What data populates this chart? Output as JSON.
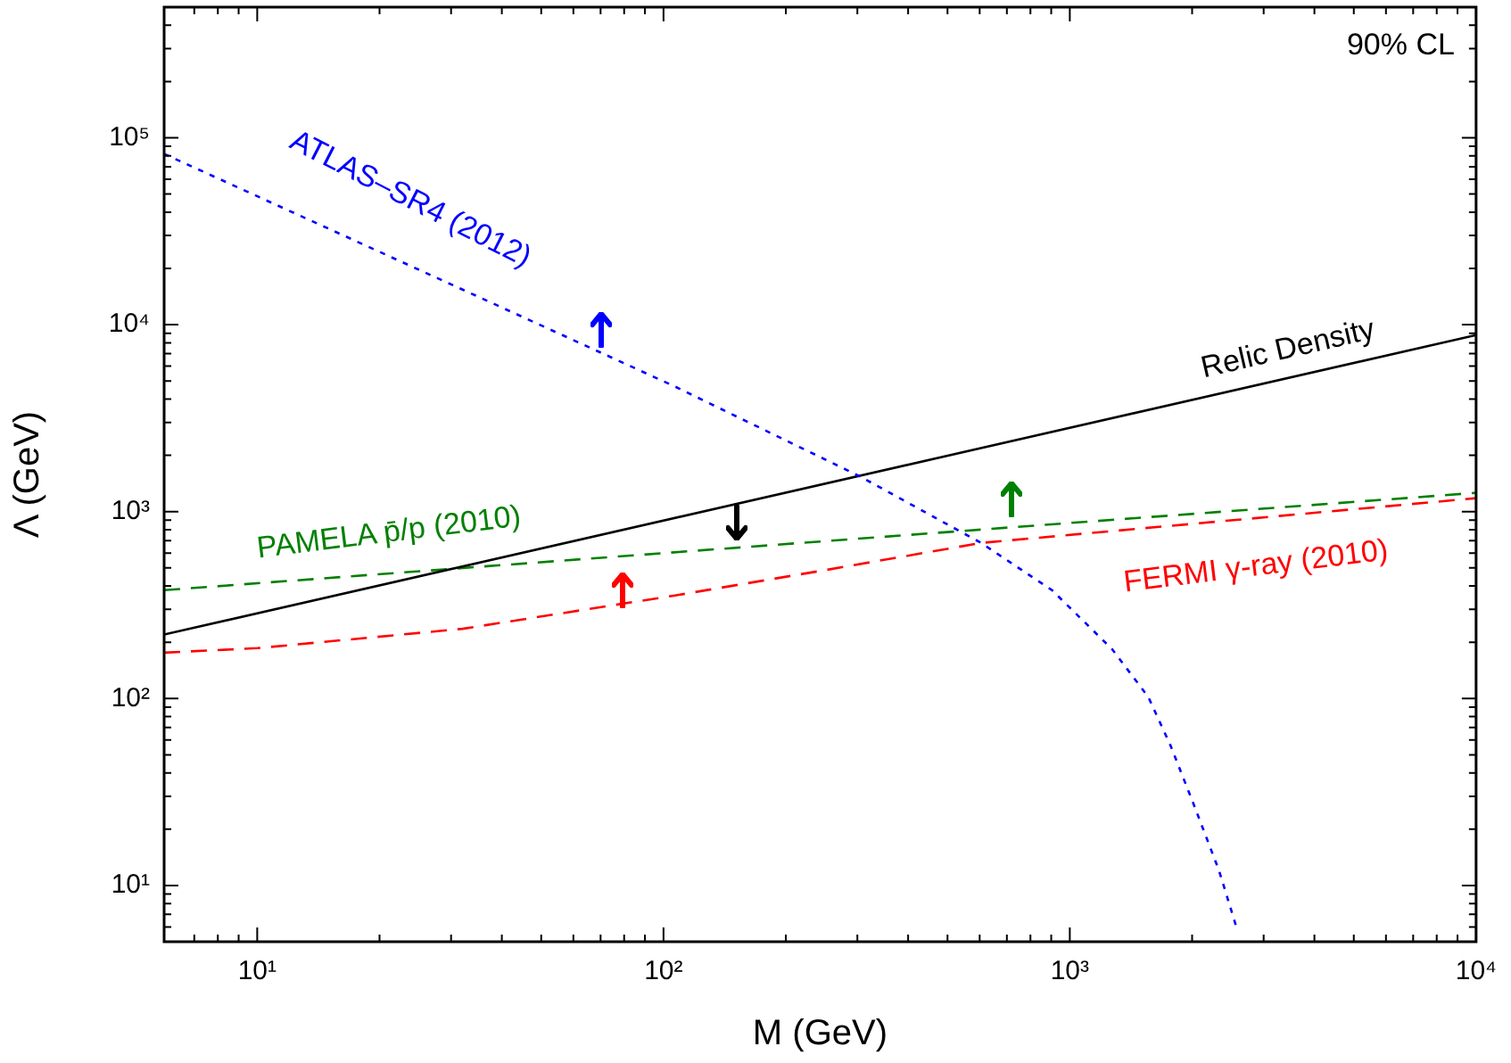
{
  "chart_data": {
    "type": "line",
    "xlabel": "M (GeV)",
    "ylabel": "Λ (GeV)",
    "log": "xy",
    "xlim": [
      5.9,
      10000
    ],
    "ylim": [
      5,
      500000
    ],
    "grid": false,
    "legend": false,
    "marker": "none",
    "xticks": [
      {
        "value": 7,
        "label": null
      },
      {
        "value": 8,
        "label": null
      },
      {
        "value": 9,
        "label": null
      },
      {
        "value": 10,
        "label": "10¹"
      },
      {
        "value": 20,
        "label": null
      },
      {
        "value": 30,
        "label": null
      },
      {
        "value": 40,
        "label": null
      },
      {
        "value": 50,
        "label": null
      },
      {
        "value": 60,
        "label": null
      },
      {
        "value": 70,
        "label": null
      },
      {
        "value": 80,
        "label": null
      },
      {
        "value": 90,
        "label": null
      },
      {
        "value": 100,
        "label": "10²"
      },
      {
        "value": 200,
        "label": null
      },
      {
        "value": 300,
        "label": null
      },
      {
        "value": 400,
        "label": null
      },
      {
        "value": 500,
        "label": null
      },
      {
        "value": 600,
        "label": null
      },
      {
        "value": 700,
        "label": null
      },
      {
        "value": 800,
        "label": null
      },
      {
        "value": 900,
        "label": null
      },
      {
        "value": 1000,
        "label": "10³"
      },
      {
        "value": 2000,
        "label": null
      },
      {
        "value": 3000,
        "label": null
      },
      {
        "value": 4000,
        "label": null
      },
      {
        "value": 5000,
        "label": null
      },
      {
        "value": 6000,
        "label": null
      },
      {
        "value": 7000,
        "label": null
      },
      {
        "value": 8000,
        "label": null
      },
      {
        "value": 9000,
        "label": null
      },
      {
        "value": 10000,
        "label": "10⁴"
      }
    ],
    "yticks": [
      {
        "value": 6,
        "label": null
      },
      {
        "value": 7,
        "label": null
      },
      {
        "value": 8,
        "label": null
      },
      {
        "value": 9,
        "label": null
      },
      {
        "value": 10,
        "label": "10¹"
      },
      {
        "value": 20,
        "label": null
      },
      {
        "value": 30,
        "label": null
      },
      {
        "value": 40,
        "label": null
      },
      {
        "value": 50,
        "label": null
      },
      {
        "value": 60,
        "label": null
      },
      {
        "value": 70,
        "label": null
      },
      {
        "value": 80,
        "label": null
      },
      {
        "value": 90,
        "label": null
      },
      {
        "value": 100,
        "label": "10²"
      },
      {
        "value": 200,
        "label": null
      },
      {
        "value": 300,
        "label": null
      },
      {
        "value": 400,
        "label": null
      },
      {
        "value": 500,
        "label": null
      },
      {
        "value": 600,
        "label": null
      },
      {
        "value": 700,
        "label": null
      },
      {
        "value": 800,
        "label": null
      },
      {
        "value": 900,
        "label": null
      },
      {
        "value": 1000,
        "label": "10³"
      },
      {
        "value": 2000,
        "label": null
      },
      {
        "value": 3000,
        "label": null
      },
      {
        "value": 4000,
        "label": null
      },
      {
        "value": 5000,
        "label": null
      },
      {
        "value": 6000,
        "label": null
      },
      {
        "value": 7000,
        "label": null
      },
      {
        "value": 8000,
        "label": null
      },
      {
        "value": 9000,
        "label": null
      },
      {
        "value": 10000,
        "label": "10⁴"
      },
      {
        "value": 20000,
        "label": null
      },
      {
        "value": 30000,
        "label": null
      },
      {
        "value": 40000,
        "label": null
      },
      {
        "value": 50000,
        "label": null
      },
      {
        "value": 60000,
        "label": null
      },
      {
        "value": 70000,
        "label": null
      },
      {
        "value": 80000,
        "label": null
      },
      {
        "value": 90000,
        "label": null
      },
      {
        "value": 100000,
        "label": "10⁵"
      },
      {
        "value": 200000,
        "label": null
      },
      {
        "value": 300000,
        "label": null
      },
      {
        "value": 400000,
        "label": null
      }
    ],
    "series": [
      {
        "name": "ATLAS–SR4 (2012)",
        "color": "#0000ff",
        "line_style": "dotted",
        "x": [
          5.9,
          29,
          69,
          106,
          305,
          605,
          904,
          1270,
          1560,
          1770,
          2020,
          2330,
          2570
        ],
        "values": [
          82000,
          17000,
          7200,
          4700,
          1540,
          680,
          380,
          184,
          102,
          56,
          27,
          12,
          6
        ]
      },
      {
        "name": "Relic Density",
        "color": "#000000",
        "line_style": "solid",
        "x": [
          5.9,
          10000
        ],
        "values": [
          220,
          8800
        ]
      },
      {
        "name": "PAMELA p̄/p (2010)",
        "color": "#008000",
        "line_style": "dashed",
        "x": [
          5.9,
          10000
        ],
        "values": [
          380,
          1260
        ]
      },
      {
        "name": "FERMI γ-ray (2010)",
        "color": "#ff0000",
        "line_style": "dashed",
        "x": [
          5.9,
          10,
          32,
          106,
          255,
          605,
          10000
        ],
        "values": [
          176,
          186,
          236,
          355,
          490,
          680,
          1180
        ]
      }
    ],
    "annotations": [
      "90% CL"
    ]
  }
}
